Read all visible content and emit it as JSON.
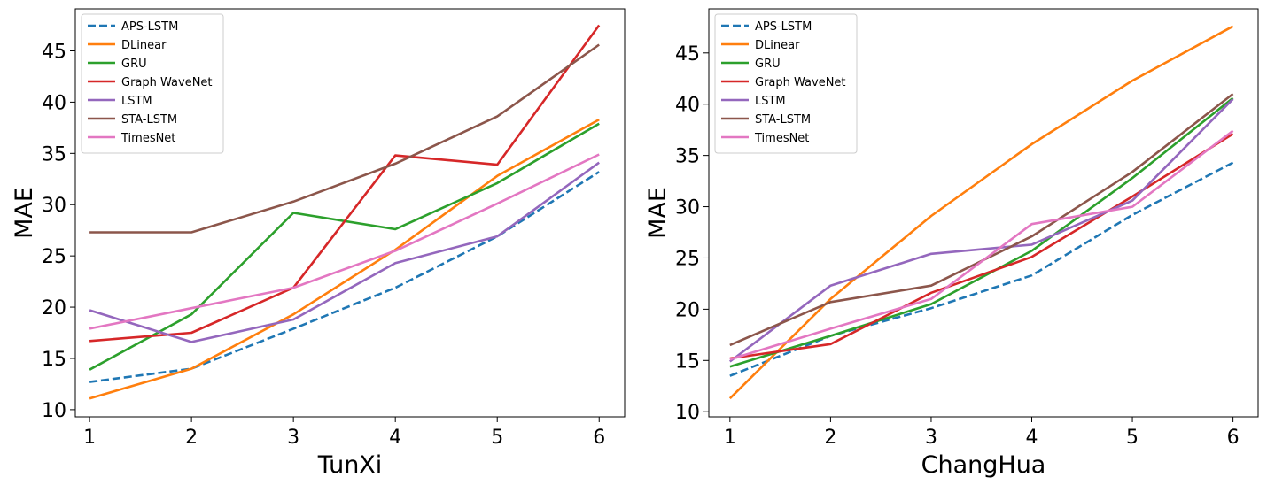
{
  "chart_data": [
    {
      "type": "line",
      "xlabel": "TunXi",
      "ylabel": "MAE",
      "x": [
        1,
        2,
        3,
        4,
        5,
        6
      ],
      "xticks": [
        "1",
        "2",
        "3",
        "4",
        "5",
        "6"
      ],
      "yticks": [
        "10",
        "15",
        "20",
        "25",
        "30",
        "35",
        "40",
        "45"
      ],
      "xlim": [
        0.86,
        6.25
      ],
      "ylim": [
        9.3,
        49.1
      ],
      "legend_position": "upper-left",
      "series": [
        {
          "name": "APS-LSTM",
          "color": "#1f77b4",
          "dash": true,
          "values": [
            12.7,
            14.0,
            17.9,
            21.9,
            26.9,
            33.2
          ]
        },
        {
          "name": "DLinear",
          "color": "#ff7f0e",
          "dash": false,
          "values": [
            11.1,
            14.0,
            19.3,
            25.6,
            32.8,
            38.3
          ]
        },
        {
          "name": "GRU",
          "color": "#2ca02c",
          "dash": false,
          "values": [
            13.9,
            19.3,
            29.2,
            27.6,
            32.1,
            37.9
          ]
        },
        {
          "name": "Graph WaveNet",
          "color": "#d62728",
          "dash": false,
          "values": [
            16.7,
            17.5,
            21.9,
            34.8,
            33.9,
            47.5
          ]
        },
        {
          "name": "LSTM",
          "color": "#9467bd",
          "dash": false,
          "values": [
            19.7,
            16.6,
            18.8,
            24.3,
            26.9,
            34.1
          ]
        },
        {
          "name": "STA-LSTM",
          "color": "#8c564b",
          "dash": false,
          "values": [
            27.3,
            27.3,
            30.3,
            34.0,
            38.6,
            45.6
          ]
        },
        {
          "name": "TimesNet",
          "color": "#e377c2",
          "dash": false,
          "values": [
            17.9,
            19.9,
            21.9,
            25.5,
            30.1,
            34.9
          ]
        }
      ]
    },
    {
      "type": "line",
      "xlabel": "ChangHua",
      "ylabel": "MAE",
      "x": [
        1,
        2,
        3,
        4,
        5,
        6
      ],
      "xticks": [
        "1",
        "2",
        "3",
        "4",
        "5",
        "6"
      ],
      "yticks": [
        "10",
        "15",
        "20",
        "25",
        "30",
        "35",
        "40",
        "45"
      ],
      "xlim": [
        0.79,
        6.25
      ],
      "ylim": [
        9.5,
        49.3
      ],
      "legend_position": "upper-left",
      "series": [
        {
          "name": "APS-LSTM",
          "color": "#1f77b4",
          "dash": true,
          "values": [
            13.5,
            17.4,
            20.1,
            23.3,
            29.2,
            34.3
          ]
        },
        {
          "name": "DLinear",
          "color": "#ff7f0e",
          "dash": false,
          "values": [
            11.3,
            21.0,
            29.1,
            36.1,
            42.3,
            47.6
          ]
        },
        {
          "name": "GRU",
          "color": "#2ca02c",
          "dash": false,
          "values": [
            14.4,
            17.4,
            20.5,
            25.7,
            32.8,
            40.6
          ]
        },
        {
          "name": "Graph WaveNet",
          "color": "#d62728",
          "dash": false,
          "values": [
            15.2,
            16.6,
            21.6,
            25.1,
            31.0,
            37.1
          ]
        },
        {
          "name": "LSTM",
          "color": "#9467bd",
          "dash": false,
          "values": [
            14.9,
            22.3,
            25.4,
            26.3,
            30.6,
            40.5
          ]
        },
        {
          "name": "STA-LSTM",
          "color": "#8c564b",
          "dash": false,
          "values": [
            16.5,
            20.7,
            22.3,
            27.1,
            33.4,
            41.0
          ]
        },
        {
          "name": "TimesNet",
          "color": "#e377c2",
          "dash": false,
          "values": [
            15.1,
            18.1,
            21.0,
            28.3,
            30.0,
            37.4
          ]
        }
      ]
    }
  ]
}
